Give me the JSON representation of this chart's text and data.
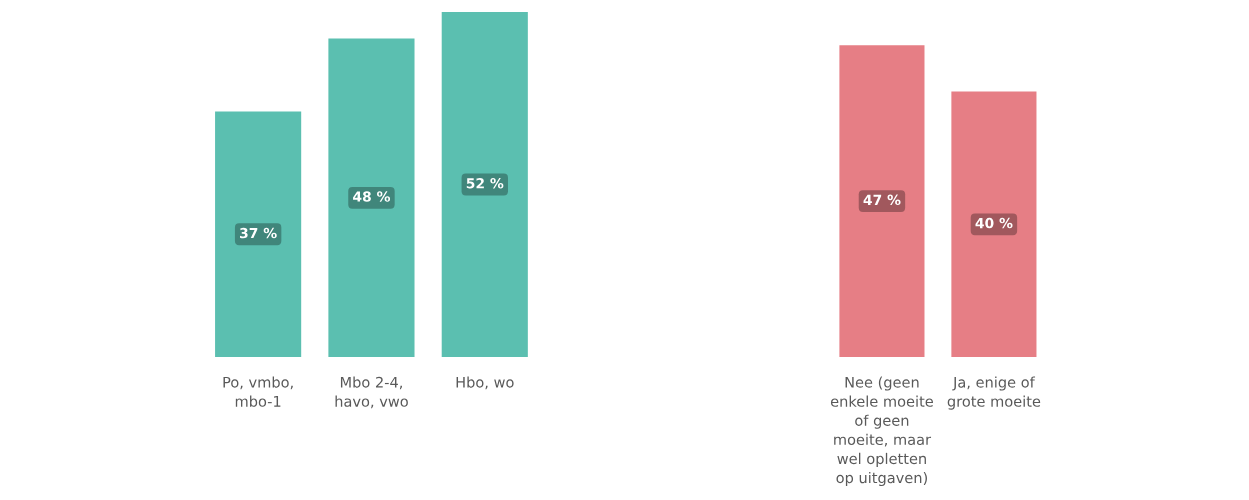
{
  "chart_data": [
    {
      "type": "bar",
      "categories": [
        "Po, vmbo,\nmbo-1",
        "Mbo 2-4,\nhavo, vwo",
        "Hbo, wo"
      ],
      "values": [
        37,
        48,
        52
      ],
      "value_labels": [
        "37 %",
        "48 %",
        "52 %"
      ],
      "color": "#5bbfb0"
    },
    {
      "type": "bar",
      "categories": [
        "Nee (geen\nenkele moeite\nof geen\nmoeite, maar\nwel opletten\nop uitgaven)",
        "Ja, enige of\ngrote moeite"
      ],
      "values": [
        47,
        40
      ],
      "value_labels": [
        "47 %",
        "40 %"
      ],
      "color": "#e67e85"
    }
  ]
}
